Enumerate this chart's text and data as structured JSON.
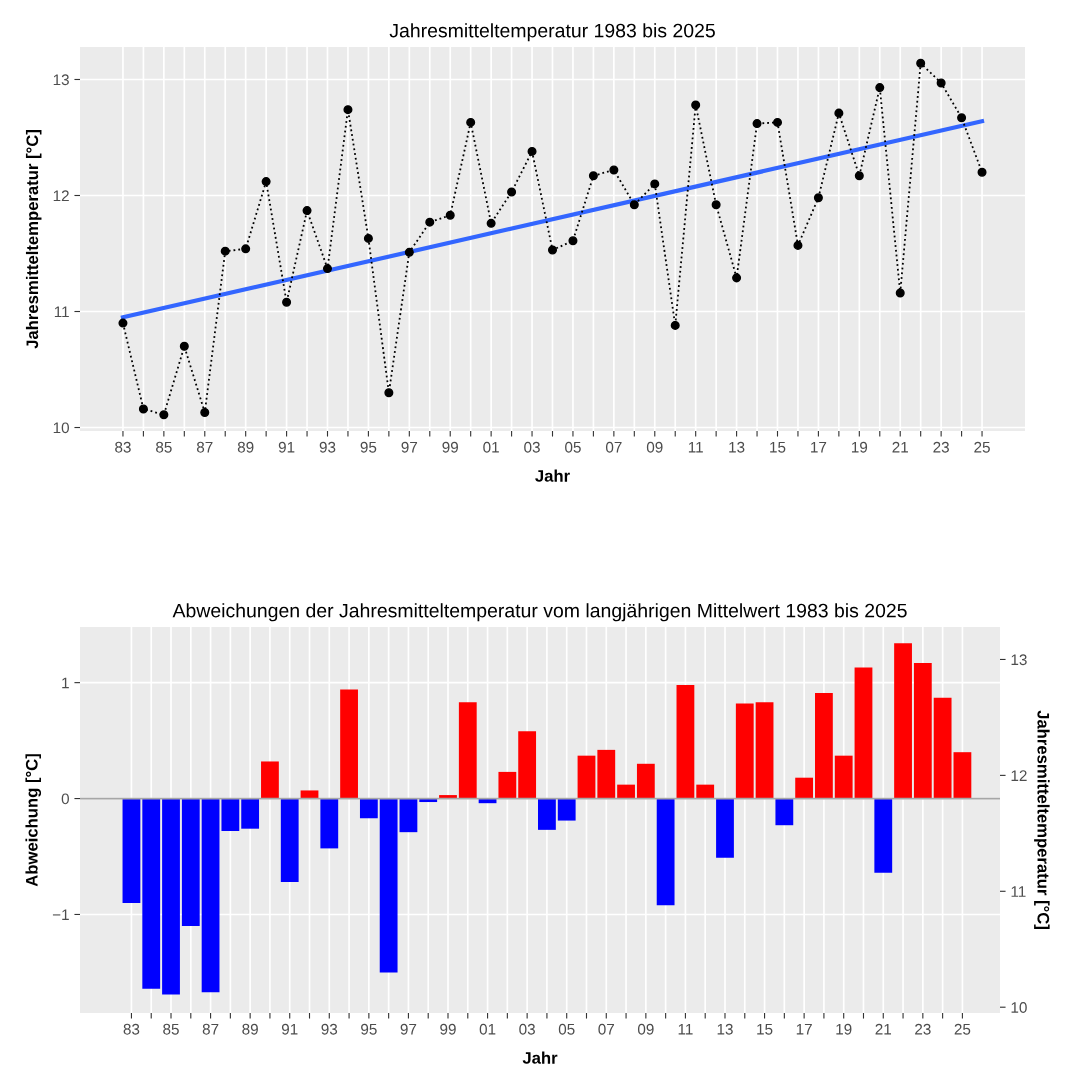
{
  "chart_data": [
    {
      "type": "line",
      "title": "Jahresmitteltemperatur 1983 bis 2025",
      "xlabel": "Jahr",
      "ylabel": "Jahresmitteltemperatur [°C]",
      "x": [
        1983,
        1984,
        1985,
        1986,
        1987,
        1988,
        1989,
        1990,
        1991,
        1992,
        1993,
        1994,
        1995,
        1996,
        1997,
        1998,
        1999,
        2000,
        2001,
        2002,
        2003,
        2004,
        2005,
        2006,
        2007,
        2008,
        2009,
        2010,
        2011,
        2012,
        2013,
        2014,
        2015,
        2016,
        2017,
        2018,
        2019,
        2020,
        2021,
        2022,
        2023,
        2024,
        2025
      ],
      "series": [
        {
          "type": "line",
          "color": "#000000",
          "marker": "circle",
          "line_style": "dotted",
          "values": [
            10.9,
            10.16,
            10.11,
            10.7,
            10.13,
            11.52,
            11.54,
            12.12,
            11.08,
            11.87,
            11.37,
            12.74,
            11.63,
            10.3,
            11.51,
            11.77,
            11.83,
            12.63,
            11.76,
            12.03,
            12.38,
            11.53,
            11.61,
            12.17,
            12.22,
            11.92,
            12.1,
            10.88,
            12.78,
            11.92,
            11.29,
            12.62,
            12.63,
            11.57,
            11.98,
            12.71,
            12.17,
            12.93,
            11.16,
            13.14,
            12.97,
            12.67,
            12.2
          ]
        },
        {
          "type": "line",
          "color": "#3366ff",
          "marker": "none",
          "line_style": "solid",
          "x": [
            1983,
            2025
          ],
          "values": [
            10.95,
            12.64
          ]
        }
      ],
      "xlim": [
        1980.9,
        2027.1
      ],
      "ylim": [
        9.97,
        13.28
      ],
      "yticks": [
        10,
        11,
        12,
        13
      ],
      "xticks": [
        {
          "value": 1983,
          "label": "83"
        },
        {
          "value": 1984,
          "label": null
        },
        {
          "value": 1985,
          "label": "85"
        },
        {
          "value": 1986,
          "label": null
        },
        {
          "value": 1987,
          "label": "87"
        },
        {
          "value": 1988,
          "label": null
        },
        {
          "value": 1989,
          "label": "89"
        },
        {
          "value": 1990,
          "label": null
        },
        {
          "value": 1991,
          "label": "91"
        },
        {
          "value": 1992,
          "label": null
        },
        {
          "value": 1993,
          "label": "93"
        },
        {
          "value": 1994,
          "label": null
        },
        {
          "value": 1995,
          "label": "95"
        },
        {
          "value": 1996,
          "label": null
        },
        {
          "value": 1997,
          "label": "97"
        },
        {
          "value": 1998,
          "label": null
        },
        {
          "value": 1999,
          "label": "99"
        },
        {
          "value": 2000,
          "label": null
        },
        {
          "value": 2001,
          "label": "01"
        },
        {
          "value": 2002,
          "label": null
        },
        {
          "value": 2003,
          "label": "03"
        },
        {
          "value": 2004,
          "label": null
        },
        {
          "value": 2005,
          "label": "05"
        },
        {
          "value": 2006,
          "label": null
        },
        {
          "value": 2007,
          "label": "07"
        },
        {
          "value": 2008,
          "label": null
        },
        {
          "value": 2009,
          "label": "09"
        },
        {
          "value": 2010,
          "label": null
        },
        {
          "value": 2011,
          "label": "11"
        },
        {
          "value": 2012,
          "label": null
        },
        {
          "value": 2013,
          "label": "13"
        },
        {
          "value": 2014,
          "label": null
        },
        {
          "value": 2015,
          "label": "15"
        },
        {
          "value": 2016,
          "label": null
        },
        {
          "value": 2017,
          "label": "17"
        },
        {
          "value": 2018,
          "label": null
        },
        {
          "value": 2019,
          "label": "19"
        },
        {
          "value": 2020,
          "label": null
        },
        {
          "value": 2021,
          "label": "21"
        },
        {
          "value": 2022,
          "label": null
        },
        {
          "value": 2023,
          "label": "23"
        },
        {
          "value": 2024,
          "label": null
        },
        {
          "value": 2025,
          "label": "25"
        }
      ],
      "grid": true
    },
    {
      "type": "bar",
      "title": "Abweichungen der Jahresmitteltemperatur vom langjährigen Mittelwert 1983 bis 2025",
      "xlabel": "Jahr",
      "ylabel": "Abweichung [°C]",
      "y2label": "Jahresmitteltemperatur [°C]",
      "x": [
        1983,
        1984,
        1985,
        1986,
        1987,
        1988,
        1989,
        1990,
        1991,
        1992,
        1993,
        1994,
        1995,
        1996,
        1997,
        1998,
        1999,
        2000,
        2001,
        2002,
        2003,
        2004,
        2005,
        2006,
        2007,
        2008,
        2009,
        2010,
        2011,
        2012,
        2013,
        2014,
        2015,
        2016,
        2017,
        2018,
        2019,
        2020,
        2021,
        2022,
        2023,
        2024,
        2025
      ],
      "values": [
        -0.9,
        -1.64,
        -1.69,
        -1.1,
        -1.67,
        -0.28,
        -0.26,
        0.32,
        -0.72,
        0.07,
        -0.43,
        0.94,
        -0.17,
        -1.5,
        -0.29,
        -0.03,
        0.03,
        0.83,
        -0.04,
        0.23,
        0.58,
        -0.27,
        -0.19,
        0.37,
        0.42,
        0.12,
        0.3,
        -0.92,
        0.98,
        0.12,
        -0.51,
        0.82,
        0.83,
        -0.23,
        0.18,
        0.91,
        0.37,
        1.13,
        -0.64,
        1.34,
        1.17,
        0.87,
        0.4
      ],
      "colors": [
        "#0000ff",
        "#0000ff",
        "#0000ff",
        "#0000ff",
        "#0000ff",
        "#0000ff",
        "#0000ff",
        "#ff0000",
        "#0000ff",
        "#ff0000",
        "#0000ff",
        "#ff0000",
        "#0000ff",
        "#0000ff",
        "#0000ff",
        "#0000ff",
        "#ff0000",
        "#ff0000",
        "#0000ff",
        "#ff0000",
        "#ff0000",
        "#0000ff",
        "#0000ff",
        "#ff0000",
        "#ff0000",
        "#ff0000",
        "#ff0000",
        "#0000ff",
        "#ff0000",
        "#ff0000",
        "#0000ff",
        "#ff0000",
        "#ff0000",
        "#0000ff",
        "#ff0000",
        "#ff0000",
        "#ff0000",
        "#ff0000",
        "#0000ff",
        "#ff0000",
        "#ff0000",
        "#ff0000",
        "#ff0000"
      ],
      "xlim": [
        1980.4,
        2026.9
      ],
      "ylim": [
        -1.85,
        1.48
      ],
      "yticks": [
        {
          "value": -1,
          "label": "−1"
        },
        0,
        1
      ],
      "y2lim": [
        9.95,
        13.28
      ],
      "y2ticks": [
        10,
        11,
        12,
        13
      ],
      "xticks": [
        {
          "value": 1983,
          "label": "83"
        },
        {
          "value": 1984,
          "label": null
        },
        {
          "value": 1985,
          "label": "85"
        },
        {
          "value": 1986,
          "label": null
        },
        {
          "value": 1987,
          "label": "87"
        },
        {
          "value": 1988,
          "label": null
        },
        {
          "value": 1989,
          "label": "89"
        },
        {
          "value": 1990,
          "label": null
        },
        {
          "value": 1991,
          "label": "91"
        },
        {
          "value": 1992,
          "label": null
        },
        {
          "value": 1993,
          "label": "93"
        },
        {
          "value": 1994,
          "label": null
        },
        {
          "value": 1995,
          "label": "95"
        },
        {
          "value": 1996,
          "label": null
        },
        {
          "value": 1997,
          "label": "97"
        },
        {
          "value": 1998,
          "label": null
        },
        {
          "value": 1999,
          "label": "99"
        },
        {
          "value": 2000,
          "label": null
        },
        {
          "value": 2001,
          "label": "01"
        },
        {
          "value": 2002,
          "label": null
        },
        {
          "value": 2003,
          "label": "03"
        },
        {
          "value": 2004,
          "label": null
        },
        {
          "value": 2005,
          "label": "05"
        },
        {
          "value": 2006,
          "label": null
        },
        {
          "value": 2007,
          "label": "07"
        },
        {
          "value": 2008,
          "label": null
        },
        {
          "value": 2009,
          "label": "09"
        },
        {
          "value": 2010,
          "label": null
        },
        {
          "value": 2011,
          "label": "11"
        },
        {
          "value": 2012,
          "label": null
        },
        {
          "value": 2013,
          "label": "13"
        },
        {
          "value": 2014,
          "label": null
        },
        {
          "value": 2015,
          "label": "15"
        },
        {
          "value": 2016,
          "label": null
        },
        {
          "value": 2017,
          "label": "17"
        },
        {
          "value": 2018,
          "label": null
        },
        {
          "value": 2019,
          "label": "19"
        },
        {
          "value": 2020,
          "label": null
        },
        {
          "value": 2021,
          "label": "21"
        },
        {
          "value": 2022,
          "label": null
        },
        {
          "value": 2023,
          "label": "23"
        },
        {
          "value": 2024,
          "label": null
        },
        {
          "value": 2025,
          "label": "25"
        }
      ],
      "ref_lines": [
        {
          "axis": "y",
          "value": 0,
          "color": "#a6a6a6"
        }
      ],
      "grid": true
    }
  ]
}
